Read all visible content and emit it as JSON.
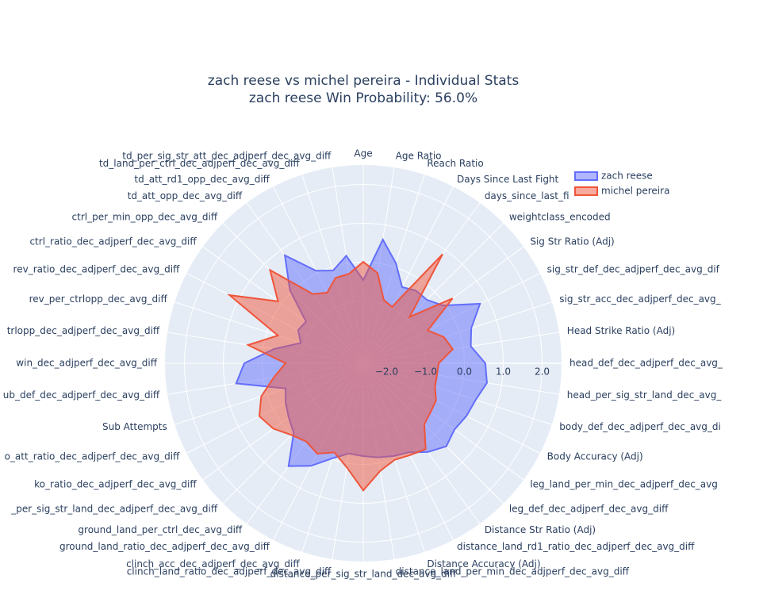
{
  "chart_data": {
    "type": "radar",
    "title": "zach reese vs michel pereira - Individual Stats",
    "subtitle": "zach reese Win Probability: 56.0%",
    "categories": [
      "Age",
      "Age Ratio",
      "Reach Ratio",
      "Days Since Last Fight",
      "days_since_last_fi",
      "weightclass_encoded",
      "Sig Str Ratio (Adj)",
      "sig_str_def_dec_adjperf_dec_avg_dif",
      "sig_str_acc_dec_adjperf_dec_avg_",
      "Head Strike Ratio (Adj)",
      "head_def_dec_adjperf_dec_avg_",
      "head_per_sig_str_land_dec_avg_",
      "body_def_dec_adjperf_dec_avg_di",
      "Body Accuracy (Adj)",
      "leg_land_per_min_dec_adjperf_dec_avg",
      "leg_def_dec_adjperf_dec_avg_diff",
      "Distance Str Ratio (Adj)",
      "distance_land_rd1_ratio_dec_adjperf_dec_avg_diff",
      "Distance Accuracy (Adj)",
      "distance_land_per_min_dec_adjperf_dec_avg_diff",
      "distance_per_sig_str_land_dec_avg_diff",
      "clinch_land_ratio_dec_adjperf_dec_avg_diff",
      "clinch_acc_dec_adjperf_dec_avg_diff",
      "ground_land_ratio_dec_adjperf_dec_avg_diff",
      "ground_land_per_ctrl_dec_avg_diff",
      "_per_sig_str_land_dec_adjperf_dec_avg_diff",
      "ko_ratio_dec_adjperf_dec_avg_diff",
      "o_att_ratio_dec_adjperf_dec_avg_diff",
      "Sub Attempts",
      "ub_def_dec_adjperf_dec_avg_diff",
      "win_dec_adjperf_dec_avg_diff",
      "trlopp_dec_adjperf_dec_avg_diff",
      "rev_per_ctrlopp_dec_avg_diff",
      "rev_ratio_dec_adjperf_dec_avg_diff",
      "ctrl_ratio_dec_adjperf_dec_avg_diff",
      "ctrl_per_min_opp_dec_avg_diff",
      "td_att_opp_dec_avg_diff",
      "td_att_rd1_opp_dec_avg_diff",
      "td_land_per_ctrl_dec_adjperf_dec_avg_diff",
      "td_per_sig_str_att_dec_adjperf_dec_avg_diff"
    ],
    "series": [
      {
        "name": "zach reese",
        "color": "#636efa",
        "values": [
          -0.46,
          0.62,
          0.11,
          -0.4,
          -0.29,
          -0.29,
          -0.07,
          0.77,
          0.32,
          0.2,
          0.54,
          0.62,
          0.44,
          0.38,
          0.3,
          0.42,
          0.22,
          -0.03,
          -0.09,
          -0.15,
          -0.21,
          -0.25,
          -0.03,
          0.36,
          0.67,
          -0.07,
          -0.23,
          -0.36,
          -0.5,
          0.71,
          0.46,
          -0.27,
          -0.91,
          -0.72,
          -0.78,
          0.07,
          0.83,
          0.07,
          -0.09,
          0.2
        ]
      },
      {
        "name": "michel pereira",
        "color": "#ef553b",
        "values": [
          0.01,
          -0.25,
          -0.89,
          -0.97,
          0.87,
          -0.91,
          0.24,
          -0.74,
          -0.42,
          -0.27,
          -0.66,
          -0.68,
          -0.66,
          -0.5,
          -0.46,
          -0.38,
          0.13,
          0.05,
          0.01,
          0.2,
          0.67,
          0.11,
          -0.19,
          0.01,
          -0.11,
          0.01,
          0.26,
          0.4,
          0.16,
          -0.27,
          -0.6,
          0.4,
          -0.29,
          1.26,
          0.11,
          0.79,
          -0.4,
          -0.56,
          -0.29,
          -0.27
        ]
      }
    ],
    "rlim": [
      -2.6,
      2.5
    ],
    "rticks": [
      {
        "value": -2,
        "label": "−2.0"
      },
      {
        "value": -1,
        "label": "−1.0"
      },
      {
        "value": 0,
        "label": "0.0"
      },
      {
        "value": 1,
        "label": "1.0"
      },
      {
        "value": 2,
        "label": "2.0"
      }
    ],
    "grid": true,
    "legend": "top-right"
  }
}
